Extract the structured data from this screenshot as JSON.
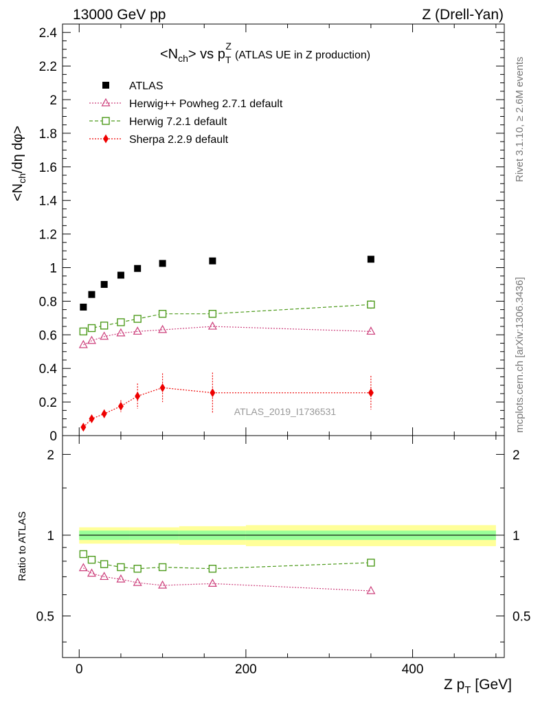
{
  "header": {
    "left": "13000 GeV pp",
    "right": "Z (Drell-Yan)"
  },
  "side_text": {
    "rivet": "Rivet 3.1.10, ≥ 2.6M events",
    "mcplots": "mcplots.cern.ch [arXiv:1306.3436]"
  },
  "watermark": "ATLAS_2019_I1736531",
  "chart_data": [
    {
      "type": "scatter",
      "title": {
        "main": "<N",
        "main_sub": "ch",
        "mid": "> vs p",
        "mid_sub": "T",
        "mid_sup": "Z",
        "rest": "(ATLAS UE in Z production)"
      },
      "ylabel": {
        "p1": "<N",
        "p1_sub": "ch",
        "p2": "/dη dφ>"
      },
      "xlim": [
        -20,
        510
      ],
      "ylim": [
        0,
        2.45
      ],
      "yticks": [
        {
          "v": 0,
          "label": "0"
        },
        {
          "v": 0.2,
          "label": "0.2"
        },
        {
          "v": 0.4,
          "label": "0.4"
        },
        {
          "v": 0.6,
          "label": "0.6"
        },
        {
          "v": 0.8,
          "label": "0.8"
        },
        {
          "v": 1,
          "label": "1"
        },
        {
          "v": 1.2,
          "label": "1.2"
        },
        {
          "v": 1.4,
          "label": "1.4"
        },
        {
          "v": 1.6,
          "label": "1.6"
        },
        {
          "v": 1.8,
          "label": "1.8"
        },
        {
          "v": 2,
          "label": "2"
        },
        {
          "v": 2.2,
          "label": "2.2"
        },
        {
          "v": 2.4,
          "label": "2.4"
        }
      ],
      "x": [
        5,
        15,
        30,
        50,
        70,
        100,
        160,
        350
      ],
      "series": [
        {
          "name": "ATLAS",
          "marker": "square-filled",
          "color": "#000000",
          "line": "none",
          "values": [
            0.765,
            0.84,
            0.9,
            0.955,
            0.995,
            1.025,
            1.04,
            1.05
          ]
        },
        {
          "name": "Herwig++ Powheg 2.7.1 default",
          "marker": "triangle-open",
          "color": "#cc3d7a",
          "line": "dotted",
          "values": [
            0.54,
            0.565,
            0.59,
            0.61,
            0.62,
            0.63,
            0.65,
            0.62
          ]
        },
        {
          "name": "Herwig 7.2.1 default",
          "marker": "square-open",
          "color": "#4c9a1a",
          "line": "dashed",
          "values": [
            0.62,
            0.64,
            0.655,
            0.675,
            0.695,
            0.725,
            0.725,
            0.78
          ],
          "errors": [
            0.01,
            0.01,
            0.01,
            0.01,
            0.01,
            0.01,
            0.01,
            0.025
          ]
        },
        {
          "name": "Sherpa 2.2.9 default",
          "marker": "diamond-filled",
          "color": "#ee0000",
          "line": "dotted",
          "values": [
            0.05,
            0.1,
            0.13,
            0.175,
            0.235,
            0.285,
            0.255,
            0.255
          ],
          "errors": [
            0.015,
            0.02,
            0.025,
            0.035,
            0.075,
            0.085,
            0.12,
            0.1
          ]
        }
      ]
    },
    {
      "type": "scatter",
      "ylabel": "Ratio to ATLAS",
      "xlabel": {
        "p1": "Z p",
        "p1_sub": "T",
        "p2": " [GeV]"
      },
      "xlim": [
        -20,
        510
      ],
      "ylim": [
        0.35,
        2.35
      ],
      "log_y": true,
      "yticks": [
        {
          "v": 0.5,
          "label": "0.5"
        },
        {
          "v": 1,
          "label": "1"
        },
        {
          "v": 2,
          "label": "2"
        }
      ],
      "xticks": [
        {
          "v": 0,
          "label": "0"
        },
        {
          "v": 200,
          "label": "200"
        },
        {
          "v": 400,
          "label": "400"
        }
      ],
      "reference_band": {
        "edges": [
          0,
          60,
          120,
          200,
          500
        ],
        "inner": [
          0.04,
          0.04,
          0.04,
          0.04
        ],
        "outer": [
          0.07,
          0.07,
          0.08,
          0.09
        ]
      },
      "x": [
        5,
        15,
        30,
        50,
        70,
        100,
        160,
        350
      ],
      "series": [
        {
          "name": "Herwig++ Powheg 2.7.1 default",
          "marker": "triangle-open",
          "color": "#cc3d7a",
          "line": "dotted",
          "values": [
            0.755,
            0.72,
            0.7,
            0.685,
            0.665,
            0.65,
            0.66,
            0.62
          ]
        },
        {
          "name": "Herwig 7.2.1 default",
          "marker": "square-open",
          "color": "#4c9a1a",
          "line": "dashed",
          "values": [
            0.85,
            0.81,
            0.78,
            0.76,
            0.75,
            0.76,
            0.75,
            0.79
          ],
          "errors": [
            0.01,
            0.01,
            0.01,
            0.01,
            0.01,
            0.01,
            0.01,
            0.025
          ]
        }
      ]
    }
  ]
}
